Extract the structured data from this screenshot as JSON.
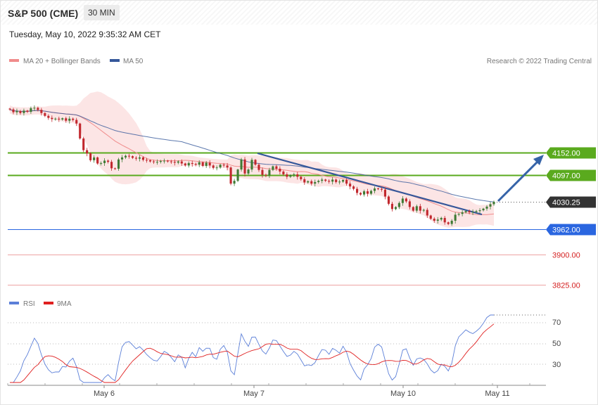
{
  "header": {
    "title": "S&P 500 (CME)",
    "timeframe": "30 MIN",
    "datetime": "Tuesday, May 10, 2022 9:35:32 AM CET"
  },
  "legend": {
    "ma20_label": "MA 20 + Bollinger Bands",
    "ma50_label": "MA 50",
    "ma20_color": "#f08c8c",
    "ma50_color": "#35579a",
    "copyright": "Research © 2022 Trading Central"
  },
  "rsi_legend": {
    "rsi_label": "RSI",
    "ma_label": "9MA",
    "rsi_color": "#5b7fd8",
    "ma_color": "#e02020"
  },
  "colors": {
    "resistance": "#5aaa1e",
    "support_strong": "#2a66e0",
    "support_weak": "#e05a5a",
    "bull_candle": "#3e7a34",
    "bear_candle": "#c1272d",
    "last_price_bg": "#333333"
  },
  "chart_data": {
    "type": "candlestick",
    "price_axis": {
      "min": 3780,
      "max": 4290
    },
    "x_ticks": [
      "May 6",
      "May 7",
      "May 10",
      "May 11"
    ],
    "levels": [
      {
        "value": 4152.0,
        "label": "4152.00",
        "kind": "resistance"
      },
      {
        "value": 4097.0,
        "label": "4097.00",
        "kind": "resistance"
      },
      {
        "value": 4030.25,
        "label": "4030.25",
        "kind": "last"
      },
      {
        "value": 3962.0,
        "label": "3962.00",
        "kind": "support-strong"
      },
      {
        "value": 3900.0,
        "label": "3900.00",
        "kind": "support-weak"
      },
      {
        "value": 3825.0,
        "label": "3825.00",
        "kind": "support-weak"
      }
    ],
    "close": [
      4259,
      4252,
      4255,
      4250,
      4256,
      4253,
      4262,
      4263,
      4258,
      4250,
      4243,
      4238,
      4235,
      4236,
      4234,
      4237,
      4231,
      4236,
      4233,
      4224,
      4187,
      4158,
      4150,
      4133,
      4140,
      4125,
      4126,
      4132,
      4129,
      4113,
      4112,
      4135,
      4140,
      4144,
      4143,
      4139,
      4137,
      4140,
      4134,
      4133,
      4130,
      4129,
      4129,
      4131,
      4132,
      4130,
      4129,
      4127,
      4130,
      4125,
      4120,
      4126,
      4124,
      4122,
      4128,
      4119,
      4127,
      4120,
      4114,
      4115,
      4122,
      4120,
      4115,
      4075,
      4082,
      4110,
      4135,
      4100,
      4110,
      4134,
      4122,
      4109,
      4097,
      4095,
      4109,
      4118,
      4112,
      4105,
      4098,
      4092,
      4096,
      4098,
      4092,
      4086,
      4078,
      4081,
      4075,
      4079,
      4082,
      4085,
      4082,
      4080,
      4085,
      4079,
      4080,
      4084,
      4075,
      4068,
      4062,
      4052,
      4048,
      4056,
      4050,
      4057,
      4063,
      4062,
      4060,
      4043,
      4025,
      4012,
      4017,
      4027,
      4038,
      4031,
      4017,
      4008,
      4019,
      4008,
      4010,
      3996,
      3988,
      3983,
      3986,
      3990,
      3979,
      3975,
      3983,
      3998,
      4000,
      4004,
      4007,
      4004,
      4005,
      4007,
      4009,
      4013,
      4018,
      4024,
      4030
    ]
  }
}
